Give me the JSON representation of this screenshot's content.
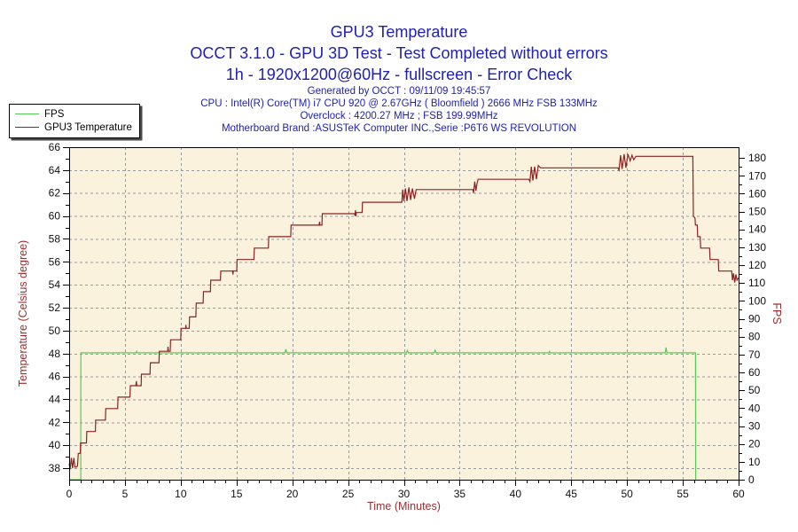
{
  "colors": {
    "header_text": "#2121AE",
    "axis_title_text": "#9B2D30",
    "tick_text": "#111111",
    "plot_bg": "#FBF2DE",
    "grid": "#9A9A9A",
    "frame": "#000000",
    "fps": "#53CE53",
    "temperature": "#8B2323"
  },
  "header": {
    "title": "GPU3 Temperature",
    "subtitle": "OCCT 3.1.0 - GPU 3D Test - Test Completed without errors",
    "settings": "1h - 1920x1200@60Hz - fullscreen - Error Check",
    "generated": "Generated by OCCT : 09/11/09 19:45:57",
    "cpu": "CPU : Intel(R) Core(TM) i7 CPU 920 @ 2.67GHz ( Bloomfield ) 2666 MHz FSB 133MHz",
    "overclock": "Overclock : 4200.27 MHz ; FSB 199.99MHz",
    "motherboard": "Motherboard Brand :ASUSTeK Computer INC.,Serie :P6T6 WS REVOLUTION"
  },
  "legend": {
    "items": [
      {
        "label": "FPS",
        "color": "#53CE53",
        "name": "legend-line-fps"
      },
      {
        "label": "GPU3 Temperature",
        "color": "#8B2323",
        "name": "legend-line-temperature"
      }
    ]
  },
  "chart_data": {
    "type": "line",
    "title": "GPU3 Temperature",
    "xlabel": "Time (Minutes)",
    "ylabel_left": "Temperature (Celsius degree)",
    "ylabel_right": "FPS",
    "axes": {
      "x": {
        "min": 0,
        "max": 60,
        "tick_labels": [
          0,
          5,
          10,
          15,
          20,
          25,
          30,
          35,
          40,
          45,
          50,
          55,
          60
        ],
        "minor_step": 1
      },
      "y_left": {
        "min": 37,
        "max": 66,
        "tick_labels": [
          38,
          40,
          42,
          44,
          46,
          48,
          50,
          52,
          54,
          56,
          58,
          60,
          62,
          64,
          66
        ],
        "minor_step": 1
      },
      "y_right": {
        "min": 0,
        "max": 186,
        "tick_labels": [
          0,
          10,
          20,
          30,
          40,
          50,
          60,
          70,
          80,
          90,
          100,
          110,
          120,
          130,
          140,
          150,
          160,
          170,
          180
        ],
        "minor_step": 5
      }
    },
    "grid": {
      "h_lines_at_left_values": [
        38,
        40,
        42,
        44,
        46,
        48,
        50,
        52,
        54,
        56,
        58,
        60,
        62,
        64
      ],
      "v_lines_at_x_values": [
        5,
        10,
        15,
        20,
        25,
        30,
        35,
        40,
        45,
        50,
        55
      ],
      "style": "dashed"
    },
    "legend_position": "top-left",
    "series": [
      {
        "name": "FPS",
        "axis": "right",
        "color": "#53CE53",
        "points": [
          [
            0,
            0
          ],
          [
            1.04,
            0
          ],
          [
            1.05,
            71
          ],
          [
            6.0,
            71
          ],
          [
            6.05,
            71.8
          ],
          [
            6.1,
            71
          ],
          [
            19.35,
            71
          ],
          [
            19.42,
            73
          ],
          [
            19.5,
            71
          ],
          [
            30.25,
            71
          ],
          [
            30.32,
            72.3
          ],
          [
            30.4,
            71
          ],
          [
            32.72,
            71
          ],
          [
            32.8,
            72.4
          ],
          [
            32.88,
            71
          ],
          [
            43.0,
            71
          ],
          [
            43.06,
            71.8
          ],
          [
            43.12,
            71
          ],
          [
            53.42,
            71
          ],
          [
            53.5,
            74
          ],
          [
            53.58,
            71
          ],
          [
            56.14,
            71
          ],
          [
            56.15,
            0
          ]
        ]
      },
      {
        "name": "GPU3 Temperature",
        "axis": "left",
        "color": "#8B2323",
        "points": [
          [
            0,
            38.4
          ],
          [
            0.08,
            37.9
          ],
          [
            0.2,
            38.9
          ],
          [
            0.3,
            38.0
          ],
          [
            0.42,
            38.9
          ],
          [
            0.52,
            38.1
          ],
          [
            0.66,
            38.1
          ],
          [
            0.75,
            38.2
          ],
          [
            0.82,
            39.3
          ],
          [
            1.0,
            39.3
          ],
          [
            1.02,
            40.2
          ],
          [
            1.55,
            40.2
          ],
          [
            1.58,
            41.2
          ],
          [
            2.35,
            41.2
          ],
          [
            2.38,
            42.2
          ],
          [
            3.25,
            42.2
          ],
          [
            3.28,
            43.2
          ],
          [
            4.35,
            43.2
          ],
          [
            4.38,
            44.2
          ],
          [
            5.45,
            44.2
          ],
          [
            5.48,
            45.2
          ],
          [
            5.98,
            45.2
          ],
          [
            6.02,
            45.6
          ],
          [
            6.06,
            45.2
          ],
          [
            6.45,
            45.2
          ],
          [
            6.48,
            46.2
          ],
          [
            7.25,
            46.2
          ],
          [
            7.28,
            47.2
          ],
          [
            8.05,
            47.2
          ],
          [
            8.08,
            48.2
          ],
          [
            8.83,
            48.2
          ],
          [
            8.86,
            48.6
          ],
          [
            8.9,
            48.2
          ],
          [
            9.06,
            48.2
          ],
          [
            9.09,
            49.2
          ],
          [
            10.0,
            49.2
          ],
          [
            10.03,
            50.2
          ],
          [
            10.44,
            50.2
          ],
          [
            10.47,
            50.5
          ],
          [
            10.5,
            50.2
          ],
          [
            10.76,
            50.2
          ],
          [
            10.79,
            51.2
          ],
          [
            11.36,
            51.2
          ],
          [
            11.39,
            52.4
          ],
          [
            12.01,
            52.4
          ],
          [
            12.04,
            53.4
          ],
          [
            12.66,
            53.4
          ],
          [
            12.69,
            54.4
          ],
          [
            13.56,
            54.4
          ],
          [
            13.59,
            55.2
          ],
          [
            14.64,
            55.2
          ],
          [
            14.68,
            54.9
          ],
          [
            14.72,
            55.2
          ],
          [
            15.02,
            55.2
          ],
          [
            15.05,
            56.2
          ],
          [
            16.56,
            56.2
          ],
          [
            16.59,
            57.2
          ],
          [
            17.86,
            57.2
          ],
          [
            17.89,
            58.2
          ],
          [
            19.86,
            58.2
          ],
          [
            19.89,
            59.2
          ],
          [
            22.4,
            59.2
          ],
          [
            22.44,
            59.5
          ],
          [
            22.48,
            59.2
          ],
          [
            22.66,
            59.2
          ],
          [
            22.69,
            60.2
          ],
          [
            25.58,
            60.2
          ],
          [
            25.62,
            60.0
          ],
          [
            25.66,
            60.5
          ],
          [
            25.7,
            60.0
          ],
          [
            25.74,
            60.3
          ],
          [
            26.26,
            60.3
          ],
          [
            26.29,
            61.2
          ],
          [
            29.82,
            61.2
          ],
          [
            29.9,
            62.3
          ],
          [
            30.0,
            61.3
          ],
          [
            30.14,
            62.4
          ],
          [
            30.28,
            61.3
          ],
          [
            30.45,
            62.5
          ],
          [
            30.6,
            61.4
          ],
          [
            30.76,
            62.4
          ],
          [
            30.95,
            61.5
          ],
          [
            31.1,
            62.3
          ],
          [
            36.18,
            62.3
          ],
          [
            36.25,
            62.0
          ],
          [
            36.35,
            63.0
          ],
          [
            36.45,
            62.2
          ],
          [
            36.55,
            62.8
          ],
          [
            36.65,
            63.2
          ],
          [
            41.2,
            63.2
          ],
          [
            41.3,
            63.0
          ],
          [
            41.42,
            64.3
          ],
          [
            41.56,
            63.1
          ],
          [
            41.72,
            64.3
          ],
          [
            41.88,
            63.2
          ],
          [
            42.05,
            64.4
          ],
          [
            42.25,
            64.2
          ],
          [
            49.18,
            64.2
          ],
          [
            49.28,
            64.0
          ],
          [
            49.42,
            65.3
          ],
          [
            49.56,
            64.1
          ],
          [
            49.74,
            65.4
          ],
          [
            49.9,
            64.2
          ],
          [
            50.08,
            65.4
          ],
          [
            50.28,
            64.8
          ],
          [
            50.45,
            65.3
          ],
          [
            50.6,
            64.9
          ],
          [
            50.8,
            65.2
          ],
          [
            55.9,
            65.2
          ],
          [
            55.95,
            60.0
          ],
          [
            56.1,
            59.8
          ],
          [
            56.13,
            59.2
          ],
          [
            56.3,
            59.2
          ],
          [
            56.33,
            58.2
          ],
          [
            56.56,
            58.2
          ],
          [
            56.6,
            57.2
          ],
          [
            57.4,
            57.2
          ],
          [
            57.44,
            56.2
          ],
          [
            58.18,
            56.2
          ],
          [
            58.22,
            55.2
          ],
          [
            59.38,
            55.2
          ],
          [
            59.45,
            54.4
          ],
          [
            59.55,
            55.0
          ],
          [
            59.65,
            54.2
          ],
          [
            59.76,
            54.9
          ],
          [
            59.86,
            54.4
          ],
          [
            60,
            54.6
          ]
        ]
      }
    ]
  }
}
